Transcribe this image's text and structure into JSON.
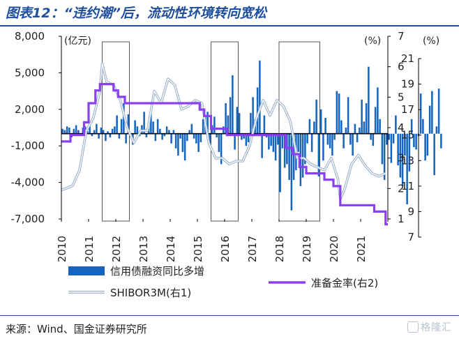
{
  "title": "图表12：“违约潮”后，流动性环境转向宽松",
  "source": "来源：Wind、国金证券研究所",
  "watermark": "格隆汇",
  "chart_data": {
    "type": "bar+line",
    "left_axis": {
      "unit": "(亿元)",
      "ticks": [
        "8,000",
        "5,000",
        "2,000",
        "-1,000",
        "-4,000",
        "-7,000"
      ],
      "ylim": [
        -7000,
        8000
      ]
    },
    "right1_axis": {
      "unit": "(%)",
      "ticks": [
        "7",
        "6",
        "5",
        "4",
        "3",
        "2",
        "1"
      ],
      "ylim": [
        1,
        7
      ]
    },
    "right2_axis": {
      "unit": "(%)",
      "ticks": [
        "21",
        "19",
        "17",
        "15",
        "13",
        "11",
        "9",
        "7"
      ],
      "ylim": [
        7,
        21
      ]
    },
    "x_ticks": [
      "2010",
      "2011",
      "2012",
      "2013",
      "2014",
      "2015",
      "2016",
      "2017",
      "2018",
      "2019",
      "2020",
      "2021"
    ],
    "x_range": [
      "2010-01",
      "2022-01"
    ],
    "highlight_boxes": [
      [
        "2011-07",
        "2012-07"
      ],
      [
        "2015-07",
        "2016-07"
      ],
      [
        "2018-01",
        "2019-07"
      ]
    ],
    "legend": [
      "信用债融资同比多增",
      "SHIBOR3M(右1)",
      "准备金率(右2)"
    ],
    "series": [
      {
        "name": "信用债融资同比多增",
        "kind": "bar",
        "axis": "left",
        "color": "#1565c0",
        "start": "2010-01",
        "values": [
          400,
          300,
          600,
          500,
          -300,
          400,
          700,
          300,
          -100,
          500,
          600,
          200,
          600,
          -200,
          300,
          800,
          -400,
          500,
          300,
          -600,
          200,
          -300,
          400,
          600,
          1500,
          -400,
          1200,
          2500,
          -800,
          1600,
          -300,
          -900,
          1100,
          600,
          -200,
          700,
          1800,
          -300,
          800,
          1600,
          1000,
          -600,
          1200,
          400,
          -500,
          -200,
          600,
          300,
          -800,
          300,
          -1200,
          -1800,
          -400,
          -1500,
          -2200,
          -600,
          300,
          800,
          -400,
          -800,
          -1500,
          -700,
          1200,
          1500,
          1800,
          -800,
          700,
          1400,
          -300,
          -1500,
          -2500,
          600,
          2500,
          1500,
          3000,
          4800,
          -1300,
          2200,
          1700,
          -500,
          -400,
          -1000,
          -700,
          1700,
          3000,
          1200,
          3800,
          6000,
          -2000,
          1500,
          -300,
          -1300,
          -1000,
          -1500,
          -2200,
          -900,
          -4800,
          -1200,
          -2800,
          -2500,
          -3800,
          -6300,
          -3800,
          -3000,
          -1500,
          -4300,
          -3600,
          -2500,
          -800,
          1200,
          -1500,
          1000,
          2800,
          -3500,
          2000,
          -2200,
          1300,
          -900,
          -1200,
          -1800,
          -500,
          3500,
          3300,
          1100,
          -1200,
          500,
          3000,
          -900,
          -1800,
          800,
          -700,
          500,
          2800,
          1000,
          2500,
          5500,
          -500,
          -1000,
          2200,
          3800,
          1200,
          -2500,
          -3800,
          -900,
          -500,
          -2400,
          -800,
          1500,
          -2600,
          -3600,
          -4300,
          -1800,
          -5800,
          -3100,
          1200,
          -1100,
          -1300,
          -200,
          3300,
          1200,
          -2200,
          -1800,
          2300,
          3500,
          -3400,
          600,
          3700,
          -1200
        ]
      },
      {
        "name": "SHIBOR3M(右1)",
        "kind": "line",
        "axis": "right1",
        "color": "#9fb4cc",
        "points": [
          [
            "2010-01",
            1.95
          ],
          [
            "2010-03",
            2.0
          ],
          [
            "2010-06",
            2.1
          ],
          [
            "2010-09",
            2.6
          ],
          [
            "2010-12",
            3.9
          ],
          [
            "2011-03",
            4.3
          ],
          [
            "2011-06",
            5.2
          ],
          [
            "2011-07",
            6.1
          ],
          [
            "2011-09",
            5.5
          ],
          [
            "2011-12",
            5.4
          ],
          [
            "2012-03",
            4.9
          ],
          [
            "2012-06",
            4.0
          ],
          [
            "2012-09",
            3.5
          ],
          [
            "2012-12",
            3.9
          ],
          [
            "2013-03",
            3.9
          ],
          [
            "2013-06",
            5.2
          ],
          [
            "2013-09",
            4.8
          ],
          [
            "2013-12",
            5.6
          ],
          [
            "2014-03",
            5.4
          ],
          [
            "2014-06",
            4.6
          ],
          [
            "2014-09",
            4.7
          ],
          [
            "2014-12",
            4.9
          ],
          [
            "2015-03",
            4.8
          ],
          [
            "2015-06",
            3.5
          ],
          [
            "2015-09",
            3.0
          ],
          [
            "2015-12",
            3.0
          ],
          [
            "2016-03",
            2.8
          ],
          [
            "2016-06",
            2.9
          ],
          [
            "2016-09",
            2.9
          ],
          [
            "2016-12",
            3.4
          ],
          [
            "2017-03",
            4.3
          ],
          [
            "2017-06",
            4.9
          ],
          [
            "2017-09",
            4.4
          ],
          [
            "2017-12",
            4.9
          ],
          [
            "2018-03",
            4.7
          ],
          [
            "2018-06",
            4.2
          ],
          [
            "2018-09",
            3.0
          ],
          [
            "2018-12",
            3.0
          ],
          [
            "2019-03",
            2.8
          ],
          [
            "2019-06",
            2.7
          ],
          [
            "2019-09",
            2.6
          ],
          [
            "2019-12",
            3.0
          ],
          [
            "2020-03",
            2.3
          ],
          [
            "2020-04",
            1.65
          ],
          [
            "2020-06",
            2.0
          ],
          [
            "2020-09",
            2.8
          ],
          [
            "2020-12",
            3.1
          ],
          [
            "2021-03",
            2.75
          ],
          [
            "2021-06",
            2.5
          ],
          [
            "2021-09",
            2.4
          ],
          [
            "2021-12",
            2.5
          ]
        ]
      },
      {
        "name": "准备金率(右2)",
        "kind": "step",
        "axis": "right2",
        "color": "#8a3ff0",
        "points": [
          [
            "2010-01",
            14.5
          ],
          [
            "2010-05",
            15.0
          ],
          [
            "2010-11",
            16.0
          ],
          [
            "2011-01",
            17.5
          ],
          [
            "2011-04",
            18.5
          ],
          [
            "2011-06",
            19.0
          ],
          [
            "2011-12",
            18.5
          ],
          [
            "2012-02",
            18.0
          ],
          [
            "2012-05",
            17.5
          ],
          [
            "2015-02",
            17.0
          ],
          [
            "2015-04",
            16.5
          ],
          [
            "2015-07",
            15.5
          ],
          [
            "2016-02",
            15.0
          ],
          [
            "2018-04",
            14.0
          ],
          [
            "2018-07",
            13.5
          ],
          [
            "2018-10",
            12.5
          ],
          [
            "2019-01",
            12.0
          ],
          [
            "2019-09",
            11.5
          ],
          [
            "2020-01",
            11.0
          ],
          [
            "2020-04",
            9.5
          ],
          [
            "2021-07",
            9.0
          ],
          [
            "2021-12",
            8.0
          ]
        ]
      }
    ]
  }
}
